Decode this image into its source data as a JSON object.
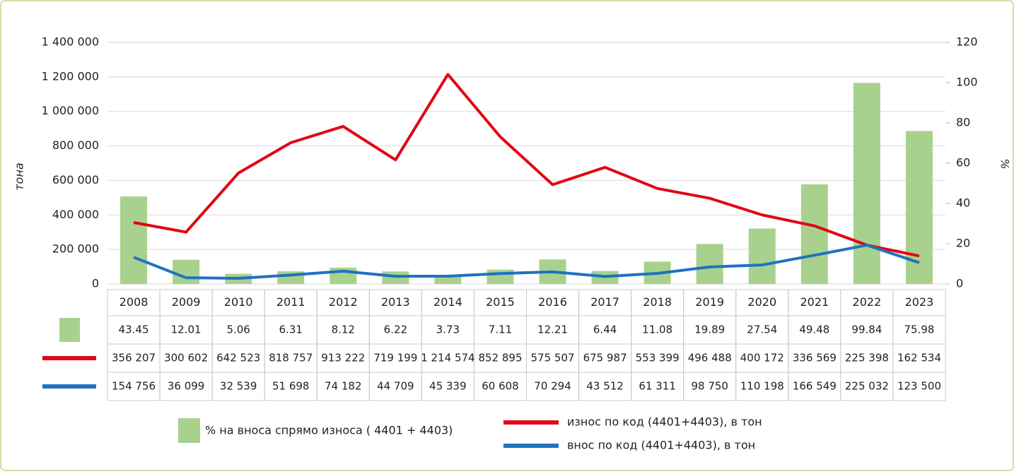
{
  "chart_data": {
    "type": "bar-line",
    "ylabel": "тона",
    "y2label": "%",
    "categories": [
      "2008",
      "2009",
      "2010",
      "2011",
      "2012",
      "2013",
      "2014",
      "2015",
      "2016",
      "2017",
      "2018",
      "2019",
      "2020",
      "2021",
      "2022",
      "2023"
    ],
    "series": [
      {
        "name": "% на  вноса спрямо износа ( 4401 + 4403)",
        "type": "bar",
        "axis": "y2",
        "color": "#a9d18e",
        "values": [
          43.45,
          12.01,
          5.06,
          6.31,
          8.12,
          6.22,
          3.73,
          7.11,
          12.21,
          6.44,
          11.08,
          19.89,
          27.54,
          49.48,
          99.84,
          75.98
        ]
      },
      {
        "name": "износ по код (4401+4403), в тон",
        "type": "line",
        "color": "#e30613",
        "values": [
          356207,
          300602,
          642523,
          818757,
          913222,
          719199,
          1214574,
          852895,
          575507,
          675987,
          553399,
          496488,
          400172,
          336569,
          225398,
          162534
        ],
        "value_labels": [
          "356 207",
          "300 602",
          "642 523",
          "818 757",
          "913 222",
          "719 199",
          "1 214 574",
          "852 895",
          "575 507",
          "675 987",
          "553 399",
          "496 488",
          "400 172",
          "336 569",
          "225 398",
          "162 534"
        ]
      },
      {
        "name": "внос по код (4401+4403), в тон",
        "type": "line",
        "color": "#1f72c0",
        "values": [
          154756,
          36099,
          32539,
          51698,
          74182,
          44709,
          45339,
          60608,
          70294,
          43512,
          61311,
          98750,
          110198,
          166549,
          225032,
          123500
        ],
        "value_labels": [
          "154 756",
          "36 099",
          "32 539",
          "51 698",
          "74 182",
          "44 709",
          "45 339",
          "60 608",
          "70 294",
          "43 512",
          "61 311",
          "98 750",
          "110 198",
          "166 549",
          "225 032",
          "123 500"
        ]
      }
    ],
    "ylim": [
      0,
      1400000
    ],
    "yticks": [
      0,
      {
        "value": 200000,
        "label": "200 000"
      },
      {
        "value": 400000,
        "label": "400 000"
      },
      {
        "value": 600000,
        "label": "600 000"
      },
      {
        "value": 800000,
        "label": "800 000"
      },
      {
        "value": 1000000,
        "label": "1 000 000"
      },
      {
        "value": 1200000,
        "label": "1 200 000"
      },
      {
        "value": 1400000,
        "label": "1 400 000"
      }
    ],
    "y2lim": [
      0,
      120
    ],
    "y2ticks": [
      0,
      20,
      40,
      60,
      80,
      100,
      120
    ]
  }
}
